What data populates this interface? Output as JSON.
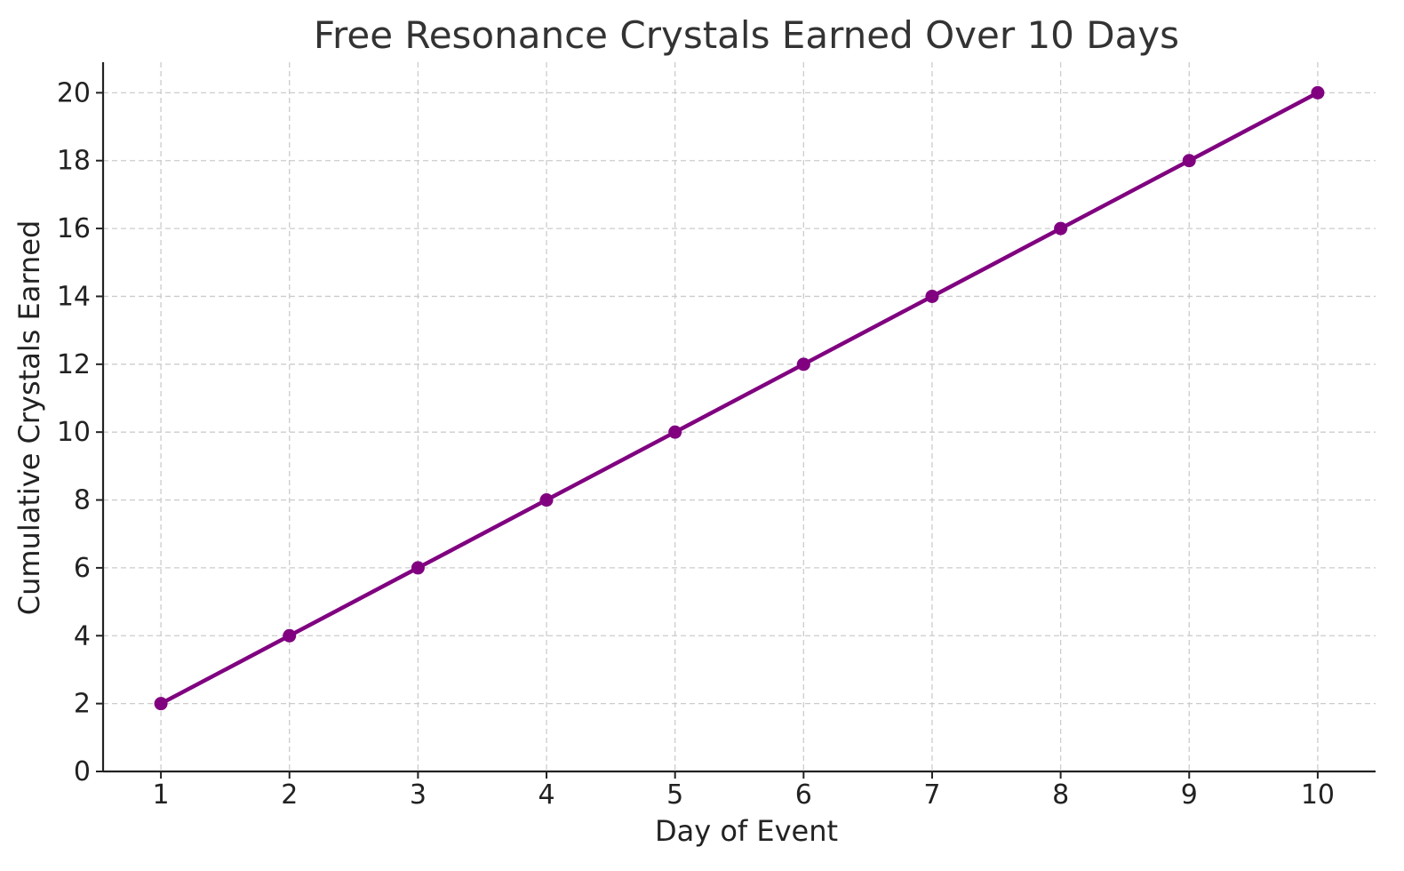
{
  "chart_data": {
    "type": "line",
    "title": "Free Resonance Crystals Earned Over 10 Days",
    "xlabel": "Day of Event",
    "ylabel": "Cumulative Crystals Earned",
    "x": [
      1,
      2,
      3,
      4,
      5,
      6,
      7,
      8,
      9,
      10
    ],
    "x_tick_labels": [
      "1",
      "2",
      "3",
      "4",
      "5",
      "6",
      "7",
      "8",
      "9",
      "10"
    ],
    "y_ticks": [
      0,
      2,
      4,
      6,
      8,
      10,
      12,
      14,
      16,
      18,
      20
    ],
    "y_tick_labels": [
      "0",
      "2",
      "4",
      "6",
      "8",
      "10",
      "12",
      "14",
      "16",
      "18",
      "20"
    ],
    "xlim": [
      0.55,
      10.45
    ],
    "ylim": [
      0,
      20.9
    ],
    "grid": true,
    "series": [
      {
        "values": [
          2,
          4,
          6,
          8,
          10,
          12,
          14,
          16,
          18,
          20
        ],
        "color": "#800080",
        "marker": "circle"
      }
    ]
  }
}
